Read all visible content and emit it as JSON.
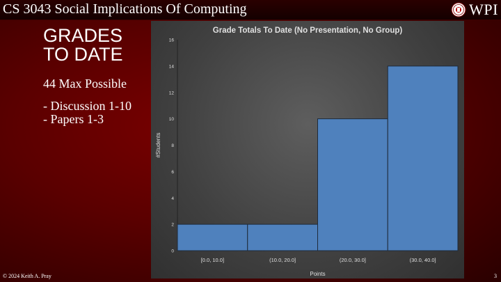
{
  "header": {
    "course_title": "CS 3043 Social Implications Of Computing",
    "logo_text": "WPI",
    "logo_icon": "university-seal-icon"
  },
  "slide": {
    "heading_line1": "GRADES",
    "heading_line2": "TO DATE",
    "max_possible": "44 Max Possible",
    "bullets": [
      "- Discussion 1-10",
      "- Papers 1-3"
    ]
  },
  "footer": {
    "copyright": "© 2024 Keith A. Pray",
    "page_number": "3"
  },
  "colors": {
    "bar_fill": "#4f81bd",
    "brand_red": "#7a0000"
  },
  "chart_data": {
    "type": "bar",
    "title": "Grade Totals To Date (No Presentation, No Group)",
    "xlabel": "Points",
    "ylabel": "#Students",
    "categories": [
      "[0.0, 10.0]",
      "(10.0, 20.0]",
      "(20.0, 30.0]",
      "(30.0, 40.0]"
    ],
    "values": [
      2,
      2,
      10,
      14
    ],
    "ylim": [
      0,
      16
    ],
    "yticks": [
      0,
      2,
      4,
      6,
      8,
      10,
      12,
      14,
      16
    ],
    "grid": false,
    "legend": "none"
  }
}
